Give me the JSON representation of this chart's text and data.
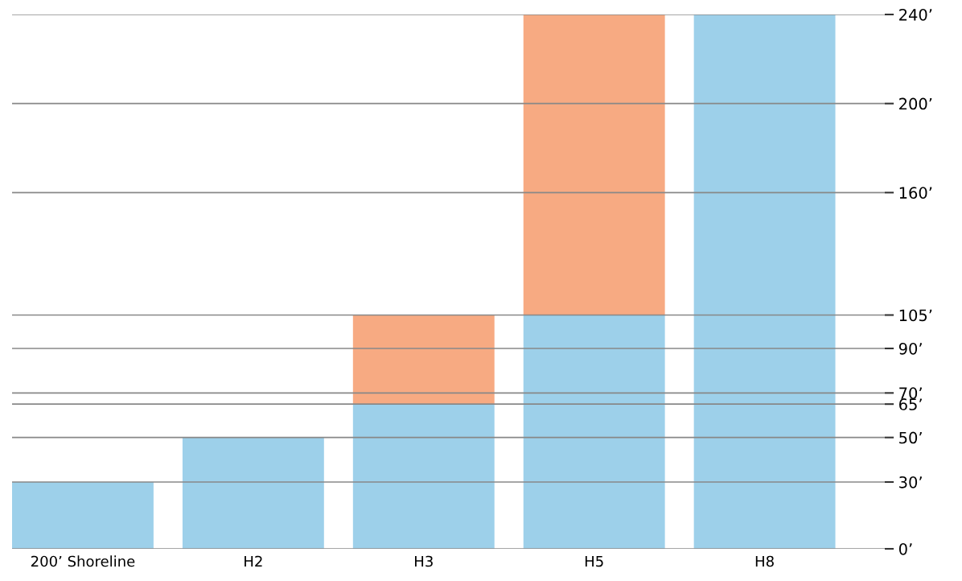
{
  "chart_data": {
    "type": "bar",
    "stacked": true,
    "categories": [
      "200’ Shoreline",
      "H2",
      "H3",
      "H5",
      "H8"
    ],
    "series": [
      {
        "color": "#9dd0ea",
        "values": [
          30,
          50,
          65,
          105,
          240
        ]
      },
      {
        "color": "#f7aa82",
        "values": [
          null,
          null,
          40,
          135,
          null
        ]
      }
    ],
    "ylim": [
      0,
      240
    ],
    "yticks": [
      {
        "value": 0,
        "label": "0’"
      },
      {
        "value": 30,
        "label": "30’"
      },
      {
        "value": 50,
        "label": "50’"
      },
      {
        "value": 65,
        "label": "65’"
      },
      {
        "value": 70,
        "label": "70’"
      },
      {
        "value": 90,
        "label": "90’"
      },
      {
        "value": 105,
        "label": "105’"
      },
      {
        "value": 160,
        "label": "160’"
      },
      {
        "value": 200,
        "label": "200’"
      },
      {
        "value": 240,
        "label": "240’"
      }
    ],
    "grid": "y",
    "legend": false
  }
}
